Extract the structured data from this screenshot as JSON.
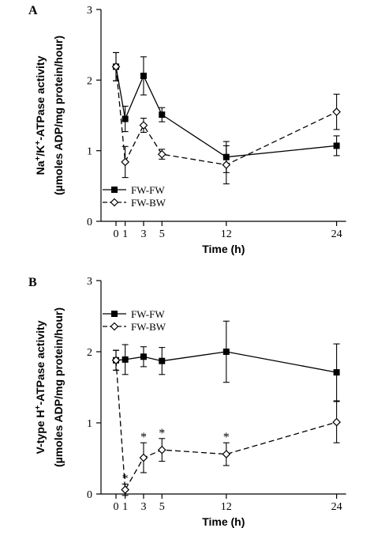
{
  "chart_data": [
    {
      "type": "line",
      "panel_label": "A",
      "ylabel_line1_parts": [
        "Na",
        "+",
        "/K",
        "+",
        "-ATPase activity"
      ],
      "ylabel_line2": "(µmoles ADP/mg protein/hour)",
      "xlabel": "Time (h)",
      "x_ticks": [
        0,
        1,
        3,
        5,
        12,
        24
      ],
      "y_ticks": [
        0,
        1,
        2,
        3
      ],
      "ylim": [
        0,
        3
      ],
      "legend_position": "bottom-left",
      "series": [
        {
          "name": "FW-FW",
          "marker": "square-filled",
          "line_style": "solid",
          "x": [
            0,
            1,
            3,
            5,
            12,
            24
          ],
          "y": [
            2.19,
            1.45,
            2.06,
            1.51,
            0.91,
            1.07
          ],
          "err": [
            0.2,
            0.18,
            0.27,
            0.1,
            0.22,
            0.14
          ]
        },
        {
          "name": "FW-BW",
          "marker": "diamond-open",
          "line_style": "dashed",
          "x": [
            0,
            1,
            3,
            5,
            12,
            24
          ],
          "y": [
            2.19,
            0.84,
            1.36,
            0.95,
            0.8,
            1.55
          ],
          "err": [
            0.2,
            0.22,
            0.1,
            0.07,
            0.27,
            0.25
          ]
        }
      ],
      "annotations": []
    },
    {
      "type": "line",
      "panel_label": "B",
      "ylabel_line1_parts": [
        "V-type H",
        "+",
        "-ATPase activity"
      ],
      "ylabel_line2": "(µmoles ADP/mg protein/hour)",
      "xlabel": "Time (h)",
      "x_ticks": [
        0,
        1,
        3,
        5,
        12,
        24
      ],
      "y_ticks": [
        0,
        1,
        2,
        3
      ],
      "ylim": [
        0,
        3
      ],
      "legend_position": "top-left",
      "series": [
        {
          "name": "FW-FW",
          "marker": "square-filled",
          "line_style": "solid",
          "x": [
            0,
            1,
            3,
            5,
            12,
            24
          ],
          "y": [
            1.88,
            1.89,
            1.93,
            1.87,
            2.0,
            1.71
          ],
          "err": [
            0.14,
            0.21,
            0.14,
            0.19,
            0.43,
            0.4
          ]
        },
        {
          "name": "FW-BW",
          "marker": "diamond-open",
          "line_style": "dashed",
          "x": [
            0,
            1,
            3,
            5,
            12,
            24
          ],
          "y": [
            1.88,
            0.06,
            0.51,
            0.62,
            0.56,
            1.01
          ],
          "err": [
            0.14,
            0.08,
            0.21,
            0.16,
            0.16,
            0.29
          ]
        }
      ],
      "annotations": [
        {
          "text": "*",
          "x": 1
        },
        {
          "text": "*",
          "x": 3
        },
        {
          "text": "*",
          "x": 5
        },
        {
          "text": "*",
          "x": 12
        }
      ]
    }
  ]
}
